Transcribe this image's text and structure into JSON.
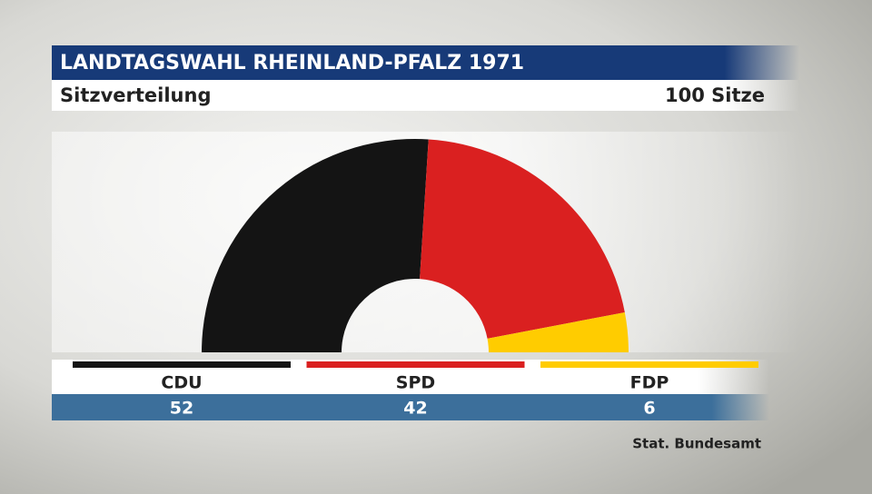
{
  "chart_data": {
    "type": "semicircle",
    "title": "LANDTAGSWAHL RHEINLAND-PFALZ 1971",
    "subtitle": "Sitzverteilung",
    "total_label": "100 Sitze",
    "source": "Stat. Bundesamt",
    "series": [
      {
        "name": "CDU",
        "color": "#141414",
        "values": [
          52
        ]
      },
      {
        "name": "SPD",
        "color": "#da2020",
        "values": [
          42
        ]
      },
      {
        "name": "FDP",
        "color": "#ffcc00",
        "values": [
          6
        ]
      }
    ]
  }
}
